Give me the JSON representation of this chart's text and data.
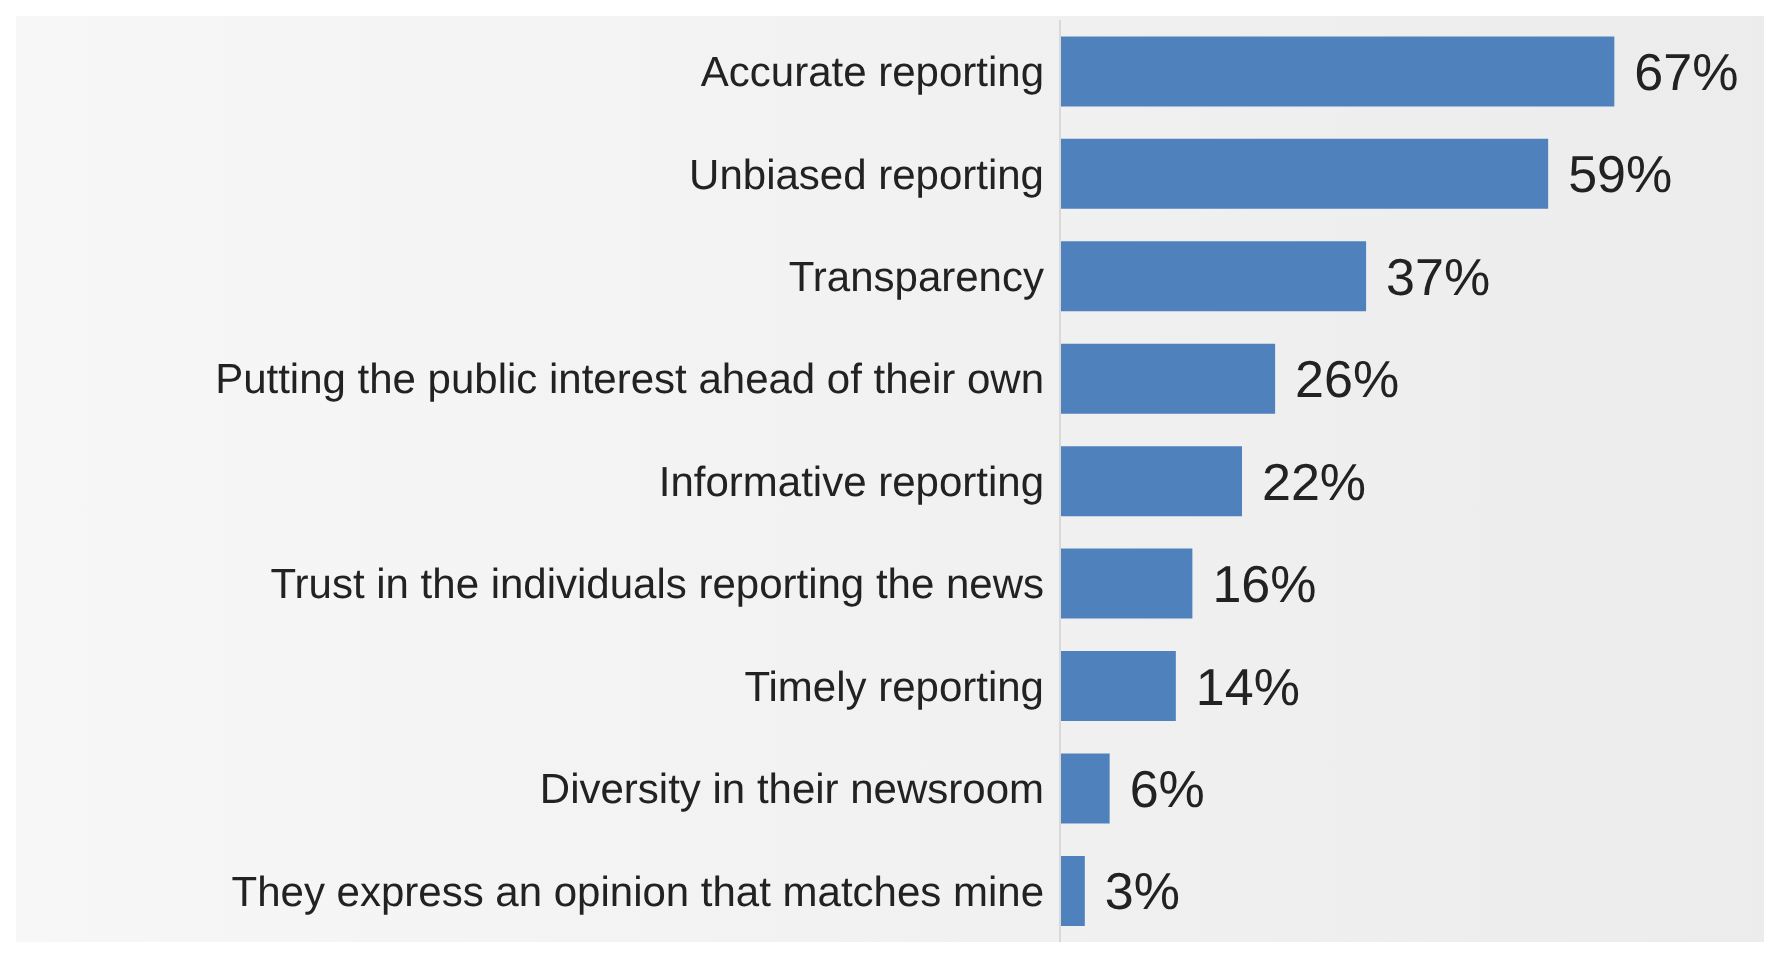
{
  "chart_data": {
    "type": "bar",
    "orientation": "horizontal",
    "categories": [
      "Accurate reporting",
      "Unbiased reporting",
      "Transparency",
      "Putting the public interest ahead of their own",
      "Informative reporting",
      "Trust in the individuals reporting the news",
      "Timely reporting",
      "Diversity in their newsroom",
      "They express an opinion that matches mine"
    ],
    "values": [
      67,
      59,
      37,
      26,
      22,
      16,
      14,
      6,
      3
    ],
    "value_labels": [
      "67%",
      "59%",
      "37%",
      "26%",
      "22%",
      "16%",
      "14%",
      "6%",
      "3%"
    ],
    "color": "#4f81bd"
  }
}
